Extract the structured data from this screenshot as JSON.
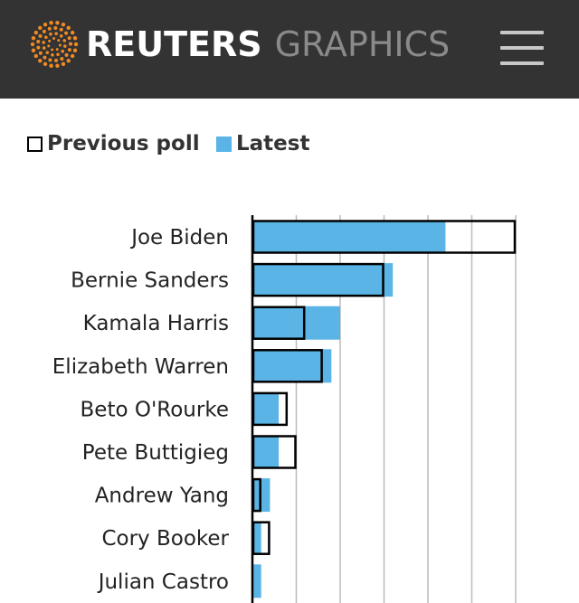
{
  "header": {
    "brand_bold": "REUTERS",
    "brand_light": "GRAPHICS",
    "logo_icon": "reuters-dot-logo-icon",
    "menu_icon": "hamburger-menu-icon"
  },
  "colors": {
    "header_bg": "#333333",
    "latest": "#5ab4e5",
    "previous_outline": "#000000",
    "gridline": "#bbbbbb",
    "logo_orange": "#f08a24"
  },
  "legend": {
    "previous_label": "Previous poll",
    "latest_label": "Latest"
  },
  "chart_data": {
    "type": "bar",
    "orientation": "horizontal",
    "categories": [
      "Joe Biden",
      "Bernie Sanders",
      "Kamala Harris",
      "Elizabeth Warren",
      "Beto O'Rourke",
      "Pete Buttigieg",
      "Andrew Yang",
      "Cory Booker",
      "Julian Castro"
    ],
    "series": [
      {
        "name": "Previous poll",
        "values": [
          30,
          15,
          6,
          8,
          4,
          5,
          1,
          2,
          0
        ],
        "style": "outline"
      },
      {
        "name": "Latest",
        "values": [
          22,
          16,
          10,
          9,
          3,
          3,
          2,
          1,
          1
        ],
        "style": "filled"
      }
    ],
    "xlim": [
      0,
      30
    ],
    "x_gridlines": [
      5,
      10,
      15,
      20,
      25,
      30
    ],
    "grid": true,
    "legend_position": "top-left",
    "title": "",
    "xlabel": "",
    "ylabel": ""
  }
}
